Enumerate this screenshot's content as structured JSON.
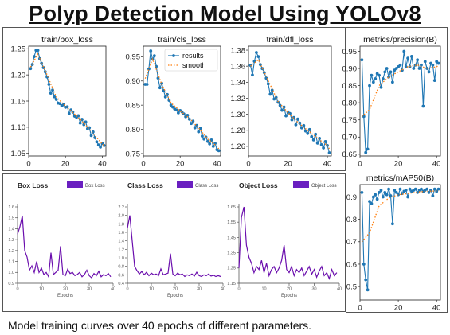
{
  "page": {
    "title": "Polyp Detection Model Using YOLOv8",
    "caption": "Model training curves over 40 epochs of different parameters."
  },
  "colors": {
    "results": "#1f77b4",
    "smooth": "#ff7f0e",
    "loss_line": "#6a0dad",
    "legend_swatch": "#6a1fc0"
  },
  "chart_data": [
    {
      "id": "box",
      "type": "line",
      "title": "train/box_loss",
      "xlim": [
        0,
        42
      ],
      "ylim": [
        1.045,
        1.255
      ],
      "xticks": [
        0,
        20,
        40
      ],
      "yticks": [
        1.05,
        1.1,
        1.15,
        1.2,
        1.25
      ],
      "tick_decimals": 2,
      "legend": null,
      "series": [
        {
          "type": "results",
          "name": "results",
          "x": [
            1,
            2,
            3,
            4,
            5,
            6,
            7,
            8,
            9,
            10,
            11,
            12,
            13,
            14,
            15,
            16,
            17,
            18,
            19,
            20,
            21,
            22,
            23,
            24,
            25,
            26,
            27,
            28,
            29,
            30,
            31,
            32,
            33,
            34,
            35,
            36,
            37,
            38,
            39,
            40,
            41
          ],
          "values": [
            1.212,
            1.22,
            1.235,
            1.247,
            1.247,
            1.231,
            1.222,
            1.214,
            1.206,
            1.196,
            1.182,
            1.165,
            1.171,
            1.158,
            1.153,
            1.146,
            1.145,
            1.141,
            1.143,
            1.138,
            1.139,
            1.126,
            1.133,
            1.129,
            1.121,
            1.119,
            1.122,
            1.108,
            1.115,
            1.105,
            1.11,
            1.097,
            1.099,
            1.084,
            1.091,
            1.08,
            1.072,
            1.066,
            1.062,
            1.069,
            1.065
          ]
        },
        {
          "type": "smooth",
          "name": "smooth",
          "x": [
            1,
            5,
            10,
            15,
            20,
            25,
            30,
            35,
            40,
            41
          ],
          "values": [
            1.215,
            1.24,
            1.2,
            1.158,
            1.14,
            1.125,
            1.108,
            1.088,
            1.068,
            1.064
          ]
        }
      ]
    },
    {
      "id": "cls",
      "type": "line",
      "title": "train/cls_loss",
      "xlim": [
        0,
        42
      ],
      "ylim": [
        0.745,
        0.972
      ],
      "xticks": [
        0,
        20,
        40
      ],
      "yticks": [
        0.75,
        0.8,
        0.85,
        0.9,
        0.95
      ],
      "tick_decimals": 2,
      "legend": {
        "position": "top-right",
        "entries": [
          "results",
          "smooth"
        ]
      },
      "series": [
        {
          "type": "results",
          "name": "results",
          "x": [
            1,
            2,
            3,
            4,
            5,
            6,
            7,
            8,
            9,
            10,
            11,
            12,
            13,
            14,
            15,
            16,
            17,
            18,
            19,
            20,
            21,
            22,
            23,
            24,
            25,
            26,
            27,
            28,
            29,
            30,
            31,
            32,
            33,
            34,
            35,
            36,
            37,
            38,
            39,
            40,
            41
          ],
          "values": [
            0.893,
            0.893,
            0.925,
            0.962,
            0.945,
            0.952,
            0.93,
            0.906,
            0.886,
            0.895,
            0.88,
            0.867,
            0.872,
            0.86,
            0.85,
            0.846,
            0.842,
            0.84,
            0.834,
            0.839,
            0.836,
            0.832,
            0.826,
            0.829,
            0.821,
            0.812,
            0.817,
            0.803,
            0.808,
            0.795,
            0.802,
            0.786,
            0.78,
            0.784,
            0.775,
            0.77,
            0.778,
            0.765,
            0.771,
            0.758,
            0.756
          ]
        },
        {
          "type": "smooth",
          "name": "smooth",
          "x": [
            1,
            5,
            10,
            15,
            20,
            25,
            30,
            35,
            40,
            41
          ],
          "values": [
            0.905,
            0.945,
            0.893,
            0.855,
            0.838,
            0.823,
            0.803,
            0.78,
            0.765,
            0.76
          ]
        }
      ]
    },
    {
      "id": "dfl",
      "type": "line",
      "title": "train/dfl_loss",
      "xlim": [
        0,
        42
      ],
      "ylim": [
        1.248,
        1.385
      ],
      "xticks": [
        0,
        20,
        40
      ],
      "yticks": [
        1.26,
        1.28,
        1.3,
        1.32,
        1.34,
        1.36,
        1.38
      ],
      "tick_decimals": 2,
      "legend": null,
      "series": [
        {
          "type": "results",
          "name": "results",
          "x": [
            1,
            2,
            3,
            4,
            5,
            6,
            7,
            8,
            9,
            10,
            11,
            12,
            13,
            14,
            15,
            16,
            17,
            18,
            19,
            20,
            21,
            22,
            23,
            24,
            25,
            26,
            27,
            28,
            29,
            30,
            31,
            32,
            33,
            34,
            35,
            36,
            37,
            38,
            39,
            40,
            41
          ],
          "values": [
            1.361,
            1.349,
            1.366,
            1.377,
            1.372,
            1.362,
            1.357,
            1.352,
            1.345,
            1.338,
            1.325,
            1.33,
            1.319,
            1.321,
            1.315,
            1.311,
            1.305,
            1.309,
            1.298,
            1.303,
            1.301,
            1.293,
            1.296,
            1.287,
            1.294,
            1.289,
            1.283,
            1.286,
            1.279,
            1.276,
            1.281,
            1.272,
            1.268,
            1.275,
            1.264,
            1.27,
            1.262,
            1.258,
            1.266,
            1.261,
            1.252
          ]
        },
        {
          "type": "smooth",
          "name": "smooth",
          "x": [
            1,
            5,
            10,
            15,
            20,
            25,
            30,
            35,
            40,
            41
          ],
          "values": [
            1.36,
            1.368,
            1.342,
            1.316,
            1.302,
            1.29,
            1.28,
            1.27,
            1.261,
            1.257
          ]
        }
      ]
    },
    {
      "id": "precision",
      "type": "line",
      "title": "metrics/precision(B)",
      "xlim": [
        0,
        42
      ],
      "ylim": [
        0.645,
        0.965
      ],
      "xticks": [
        0,
        20,
        40
      ],
      "yticks": [
        0.65,
        0.7,
        0.75,
        0.8,
        0.85,
        0.9,
        0.95
      ],
      "tick_decimals": 2,
      "legend": null,
      "series": [
        {
          "type": "results",
          "name": "results",
          "x": [
            1,
            2,
            3,
            4,
            5,
            6,
            7,
            8,
            9,
            10,
            11,
            12,
            13,
            14,
            15,
            16,
            17,
            18,
            19,
            20,
            21,
            22,
            23,
            24,
            25,
            26,
            27,
            28,
            29,
            30,
            31,
            32,
            33,
            34,
            35,
            36,
            37,
            38,
            39,
            40,
            41
          ],
          "values": [
            0.925,
            0.76,
            0.655,
            0.665,
            0.85,
            0.88,
            0.86,
            0.87,
            0.885,
            0.88,
            0.845,
            0.87,
            0.89,
            0.9,
            0.875,
            0.89,
            0.86,
            0.895,
            0.9,
            0.905,
            0.91,
            0.895,
            0.95,
            0.905,
            0.93,
            0.905,
            0.935,
            0.9,
            0.91,
            0.925,
            0.9,
            0.91,
            0.79,
            0.92,
            0.9,
            0.89,
            0.915,
            0.91,
            0.865,
            0.92,
            0.915
          ]
        },
        {
          "type": "smooth",
          "name": "smooth",
          "x": [
            1,
            5,
            10,
            15,
            20,
            25,
            30,
            35,
            40,
            41
          ],
          "values": [
            0.76,
            0.78,
            0.85,
            0.875,
            0.89,
            0.905,
            0.91,
            0.9,
            0.905,
            0.908
          ]
        }
      ]
    },
    {
      "id": "map50",
      "type": "line",
      "title": "metrics/mAP50(B)",
      "xlim": [
        0,
        42
      ],
      "ylim": [
        0.44,
        0.955
      ],
      "xticks": [
        0,
        20,
        40
      ],
      "yticks": [
        0.5,
        0.6,
        0.7,
        0.8,
        0.9
      ],
      "tick_decimals": 1,
      "legend": null,
      "series": [
        {
          "type": "results",
          "name": "results",
          "x": [
            1,
            2,
            3,
            4,
            5,
            6,
            7,
            8,
            9,
            10,
            11,
            12,
            13,
            14,
            15,
            16,
            17,
            18,
            19,
            20,
            21,
            22,
            23,
            24,
            25,
            26,
            27,
            28,
            29,
            30,
            31,
            32,
            33,
            34,
            35,
            36,
            37,
            38,
            39,
            40,
            41
          ],
          "values": [
            0.92,
            0.6,
            0.53,
            0.485,
            0.88,
            0.87,
            0.9,
            0.91,
            0.89,
            0.92,
            0.93,
            0.9,
            0.92,
            0.91,
            0.935,
            0.905,
            0.78,
            0.93,
            0.92,
            0.91,
            0.935,
            0.915,
            0.925,
            0.93,
            0.9,
            0.935,
            0.925,
            0.93,
            0.935,
            0.92,
            0.93,
            0.935,
            0.925,
            0.93,
            0.935,
            0.92,
            0.93,
            0.905,
            0.935,
            0.925,
            0.935
          ]
        },
        {
          "type": "smooth",
          "name": "smooth",
          "x": [
            1,
            5,
            10,
            15,
            20,
            25,
            30,
            35,
            40,
            41
          ],
          "values": [
            0.7,
            0.74,
            0.86,
            0.895,
            0.91,
            0.915,
            0.922,
            0.925,
            0.927,
            0.928
          ]
        }
      ]
    },
    {
      "id": "boxloss2",
      "type": "line",
      "title": "Box Loss",
      "xlabel": "Epochs",
      "xlim": [
        0,
        40
      ],
      "ylim": [
        0.9,
        1.6
      ],
      "xticks": [
        0,
        10,
        20,
        30,
        40
      ],
      "yticks": [
        0.9,
        1.0,
        1.1,
        1.2,
        1.3,
        1.4,
        1.5,
        1.6
      ],
      "tick_decimals": 1,
      "legend": {
        "position": "top-right",
        "entries": [
          "Box Loss"
        ]
      },
      "series": [
        {
          "type": "loss",
          "name": "Box Loss",
          "x": [
            0,
            1,
            2,
            3,
            4,
            5,
            6,
            7,
            8,
            9,
            10,
            11,
            12,
            13,
            14,
            15,
            16,
            17,
            18,
            19,
            20,
            21,
            22,
            23,
            24,
            25,
            26,
            27,
            28,
            29,
            30,
            31,
            32,
            33,
            34,
            35,
            36,
            37,
            38,
            39
          ],
          "values": [
            1.35,
            1.42,
            1.52,
            1.2,
            1.14,
            1.02,
            1.06,
            1.0,
            1.1,
            1.0,
            1.04,
            0.98,
            1.0,
            0.96,
            1.18,
            0.98,
            1.0,
            1.02,
            1.24,
            0.98,
            0.97,
            1.03,
            0.99,
            1.0,
            0.97,
            0.98,
            1.0,
            0.96,
            0.98,
            1.02,
            0.97,
            0.95,
            0.99,
            0.97,
            1.01,
            0.96,
            0.98,
            0.97,
            0.99,
            0.96
          ]
        }
      ]
    },
    {
      "id": "classloss2",
      "type": "line",
      "title": "Class Loss",
      "xlabel": "Epochs",
      "xlim": [
        0,
        40
      ],
      "ylim": [
        0.4,
        2.2
      ],
      "xticks": [
        0,
        10,
        20,
        30,
        40
      ],
      "yticks": [
        0.4,
        0.6,
        0.8,
        1.0,
        1.2,
        1.4,
        1.6,
        1.8,
        2.0,
        2.2
      ],
      "tick_decimals": 1,
      "legend": {
        "position": "top-right",
        "entries": [
          "Class Loss"
        ]
      },
      "series": [
        {
          "type": "loss",
          "name": "Class Loss",
          "x": [
            0,
            1,
            2,
            3,
            4,
            5,
            6,
            7,
            8,
            9,
            10,
            11,
            12,
            13,
            14,
            15,
            16,
            17,
            18,
            19,
            20,
            21,
            22,
            23,
            24,
            25,
            26,
            27,
            28,
            29,
            30,
            31,
            32,
            33,
            34,
            35,
            36,
            37,
            38,
            39
          ],
          "values": [
            1.7,
            2.0,
            1.4,
            0.8,
            0.7,
            0.62,
            0.68,
            0.6,
            0.66,
            0.58,
            0.64,
            0.6,
            0.62,
            0.58,
            0.74,
            0.6,
            0.62,
            0.64,
            1.1,
            0.62,
            0.58,
            0.64,
            0.6,
            0.62,
            0.56,
            0.6,
            0.58,
            0.62,
            0.57,
            0.66,
            0.58,
            0.56,
            0.6,
            0.58,
            0.62,
            0.57,
            0.59,
            0.56,
            0.58,
            0.56
          ]
        }
      ]
    },
    {
      "id": "objloss2",
      "type": "line",
      "title": "Object Loss",
      "xlabel": "Epochs",
      "xlim": [
        0,
        40
      ],
      "ylim": [
        1.15,
        1.65
      ],
      "xticks": [
        0,
        10,
        20,
        30,
        40
      ],
      "yticks": [
        1.15,
        1.25,
        1.35,
        1.45,
        1.55,
        1.65
      ],
      "tick_decimals": 2,
      "legend": {
        "position": "top-right",
        "entries": [
          "Object Loss"
        ]
      },
      "series": [
        {
          "type": "loss",
          "name": "Object Loss",
          "x": [
            0,
            1,
            2,
            3,
            4,
            5,
            6,
            7,
            8,
            9,
            10,
            11,
            12,
            13,
            14,
            15,
            16,
            17,
            18,
            19,
            20,
            21,
            22,
            23,
            24,
            25,
            26,
            27,
            28,
            29,
            30,
            31,
            32,
            33,
            34,
            35,
            36,
            37,
            38,
            39
          ],
          "values": [
            1.25,
            1.58,
            1.65,
            1.4,
            1.32,
            1.28,
            1.22,
            1.26,
            1.24,
            1.3,
            1.22,
            1.28,
            1.2,
            1.24,
            1.26,
            1.22,
            1.25,
            1.3,
            1.4,
            1.24,
            1.22,
            1.26,
            1.2,
            1.24,
            1.22,
            1.25,
            1.2,
            1.23,
            1.26,
            1.21,
            1.24,
            1.19,
            1.23,
            1.26,
            1.2,
            1.22,
            1.18,
            1.24,
            1.2,
            1.22
          ]
        }
      ]
    }
  ]
}
